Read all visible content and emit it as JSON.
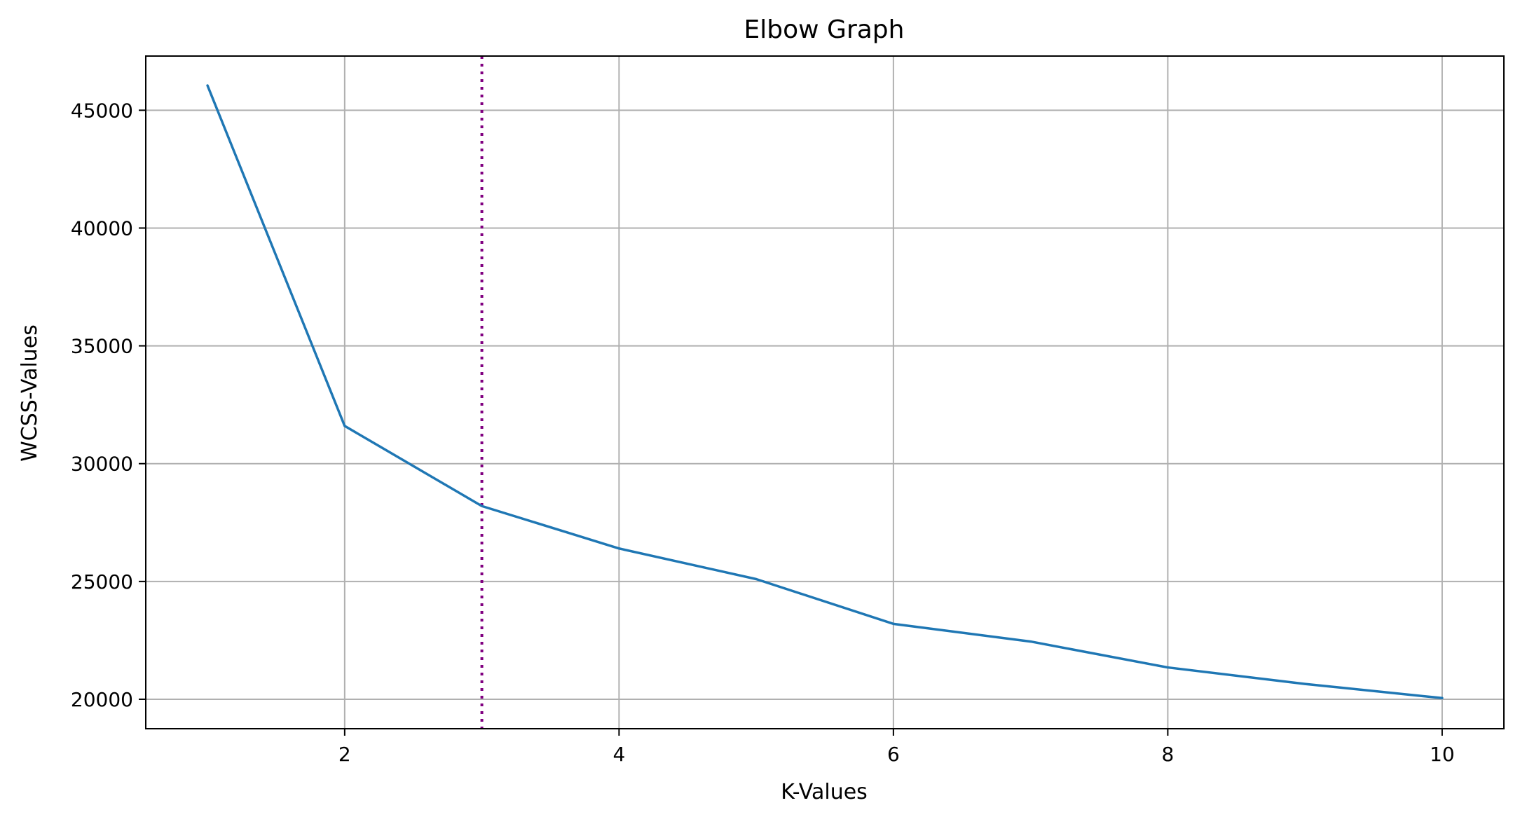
{
  "chart_data": {
    "type": "line",
    "title": "Elbow Graph",
    "xlabel": "K-Values",
    "ylabel": "WCSS-Values",
    "xlim": [
      0.55,
      10.45
    ],
    "ylim": [
      18750,
      47300
    ],
    "x_ticks": [
      2,
      4,
      6,
      8,
      10
    ],
    "y_ticks": [
      20000,
      25000,
      30000,
      35000,
      40000,
      45000
    ],
    "grid": true,
    "series": [
      {
        "color": "#1f77b4",
        "x": [
          1,
          2,
          3,
          4,
          5,
          6,
          7,
          8,
          9,
          10
        ],
        "values": [
          46050,
          31600,
          28200,
          26400,
          25100,
          23200,
          22450,
          21350,
          20650,
          20050
        ]
      }
    ],
    "vertical_line": {
      "x": 3,
      "style": "dotted",
      "color": "#800080"
    }
  }
}
